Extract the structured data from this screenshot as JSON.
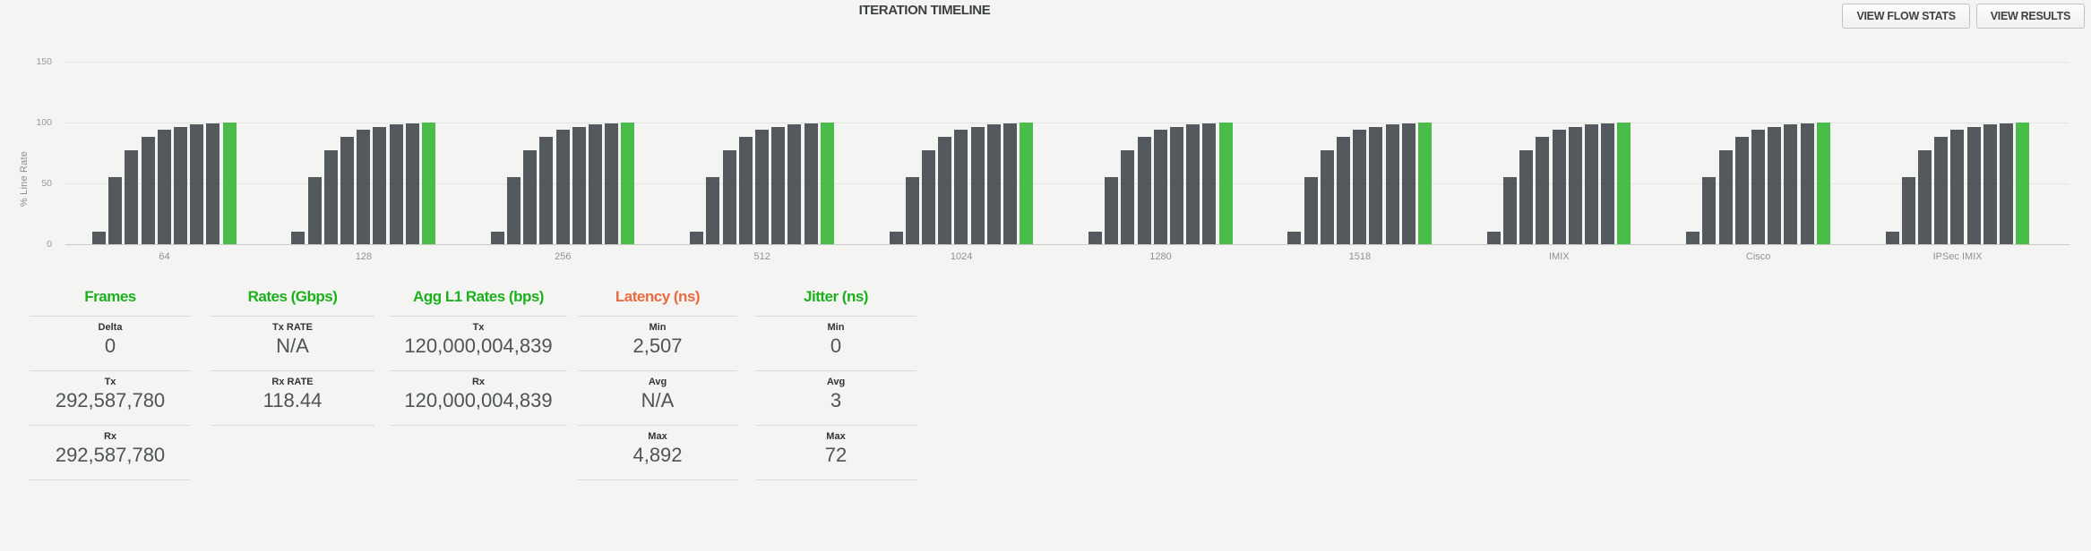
{
  "header": {
    "title": "ITERATION TIMELINE",
    "buttons": [
      {
        "label": "VIEW FLOW STATS"
      },
      {
        "label": "VIEW RESULTS"
      }
    ]
  },
  "chart_data": {
    "type": "bar",
    "title": "ITERATION TIMELINE",
    "xlabel": "",
    "ylabel": "% Line Rate",
    "ylim": [
      0,
      150
    ],
    "yticks": [
      0,
      50,
      100,
      150
    ],
    "grid": true,
    "legend": "none",
    "bar_color": "#54595d",
    "final_bar_color": "#4abc49",
    "note": "Each frame-size group shows the binary-search iteration ramp in % line rate; the last (passing) iteration bar is green.",
    "categories": [
      "64",
      "128",
      "256",
      "512",
      "1024",
      "1280",
      "1518",
      "IMIX",
      "Cisco",
      "IPSec IMIX"
    ],
    "series": [
      {
        "name": "64",
        "values": [
          10,
          55,
          77,
          88,
          94,
          96.5,
          98.5,
          99.3,
          100
        ]
      },
      {
        "name": "128",
        "values": [
          10,
          55,
          77,
          88,
          94,
          96.5,
          98.5,
          99.3,
          100
        ]
      },
      {
        "name": "256",
        "values": [
          10,
          55,
          77,
          88,
          94,
          96.5,
          98.5,
          99.3,
          100
        ]
      },
      {
        "name": "512",
        "values": [
          10,
          55,
          77,
          88,
          94,
          96.5,
          98.5,
          99.3,
          100
        ]
      },
      {
        "name": "1024",
        "values": [
          10,
          55,
          77,
          88,
          94,
          96.5,
          98.5,
          99.3,
          100
        ]
      },
      {
        "name": "1280",
        "values": [
          10,
          55,
          77,
          88,
          94,
          96.5,
          98.5,
          99.3,
          100
        ]
      },
      {
        "name": "1518",
        "values": [
          10,
          55,
          77,
          88,
          94,
          96.5,
          98.5,
          99.3,
          100
        ]
      },
      {
        "name": "IMIX",
        "values": [
          10,
          55,
          77,
          88,
          94,
          96.5,
          98.5,
          99.3,
          100
        ]
      },
      {
        "name": "Cisco",
        "values": [
          10,
          55,
          77,
          88,
          94,
          96.5,
          98.5,
          99.3,
          100
        ]
      },
      {
        "name": "IPSec IMIX",
        "values": [
          10,
          55,
          77,
          88,
          94,
          96.5,
          98.5,
          99.3,
          100
        ]
      }
    ]
  },
  "stats": {
    "columns": [
      {
        "id": "frames",
        "header": "Frames",
        "header_color": "#1db01d",
        "rows": [
          {
            "label": "Delta",
            "value": "0"
          },
          {
            "label": "Tx",
            "value": "292,587,780"
          },
          {
            "label": "Rx",
            "value": "292,587,780"
          }
        ]
      },
      {
        "id": "rates",
        "header": "Rates (Gbps)",
        "header_color": "#1db01d",
        "rows": [
          {
            "label": "Tx RATE",
            "value": "N/A"
          },
          {
            "label": "Rx RATE",
            "value": "118.44"
          }
        ]
      },
      {
        "id": "agg-l1-rates",
        "header": "Agg L1 Rates (bps)",
        "header_color": "#1db01d",
        "rows": [
          {
            "label": "Tx",
            "value": "120,000,004,839"
          },
          {
            "label": "Rx",
            "value": "120,000,004,839"
          }
        ]
      },
      {
        "id": "latency",
        "header": "Latency (ns)",
        "header_color": "#ec6a40",
        "rows": [
          {
            "label": "Min",
            "value": "2,507"
          },
          {
            "label": "Avg",
            "value": "N/A"
          },
          {
            "label": "Max",
            "value": "4,892"
          }
        ]
      },
      {
        "id": "jitter",
        "header": "Jitter (ns)",
        "header_color": "#1db01d",
        "rows": [
          {
            "label": "Min",
            "value": "0"
          },
          {
            "label": "Avg",
            "value": "3"
          },
          {
            "label": "Max",
            "value": "72"
          }
        ]
      }
    ]
  }
}
